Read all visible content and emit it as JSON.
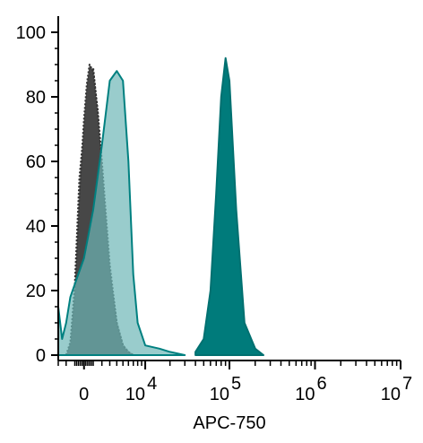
{
  "chart_data": {
    "type": "area",
    "title": "",
    "xlabel": "APC-750",
    "ylabel": "",
    "x_scale": "biexponential",
    "ylim": [
      0,
      100
    ],
    "grid": false,
    "y_ticks": [
      "0",
      "20",
      "40",
      "60",
      "80",
      "100"
    ],
    "x_ticks": [
      {
        "base": "0",
        "exp": ""
      },
      {
        "base": "10",
        "exp": "4"
      },
      {
        "base": "10",
        "exp": "5"
      },
      {
        "base": "10",
        "exp": "6"
      },
      {
        "base": "10",
        "exp": "7"
      }
    ],
    "series": [
      {
        "style": {
          "fill": "#8c8c8c",
          "opacity": 1,
          "stroke": "#333333",
          "dash": true
        },
        "x": [
          -2000,
          -1500,
          -1000,
          -500,
          0,
          300,
          600,
          1000,
          1500,
          2000,
          3000,
          4000,
          5000,
          6000,
          7000,
          8000
        ],
        "values": [
          0,
          3,
          22,
          55,
          70,
          82,
          87,
          89,
          75,
          55,
          25,
          10,
          3,
          1,
          0,
          0
        ]
      },
      {
        "style": {
          "fill": "#474747",
          "opacity": 1,
          "stroke": "#333333",
          "dash": true
        },
        "x": [
          -2000,
          -1500,
          -1000,
          -500,
          0,
          300,
          600,
          1000,
          1500,
          2000,
          3000,
          4000,
          5000,
          6000,
          7000,
          8000
        ],
        "values": [
          0,
          4,
          20,
          50,
          73,
          84,
          90,
          88,
          76,
          60,
          28,
          10,
          3,
          1,
          0,
          0
        ]
      },
      {
        "style": {
          "fill": "#6eb6b6",
          "opacity": 0.7,
          "stroke": "#008080",
          "dash": false
        },
        "x": [
          -3000,
          -2500,
          -2000,
          -1500,
          -1000,
          0,
          1000,
          2000,
          3000,
          4000,
          5000,
          6000,
          7000,
          8000,
          10000,
          15000,
          20000,
          30000
        ],
        "values": [
          15,
          5,
          10,
          18,
          22,
          30,
          45,
          65,
          85,
          88,
          85,
          60,
          25,
          10,
          3,
          2,
          1,
          0
        ]
      },
      {
        "style": {
          "fill": "#007b7b",
          "opacity": 1,
          "stroke": "#007070",
          "dash": false
        },
        "x": [
          40000,
          50000,
          60000,
          70000,
          80000,
          90000,
          100000,
          120000,
          150000,
          200000,
          250000
        ],
        "values": [
          1,
          5,
          20,
          50,
          80,
          92,
          85,
          45,
          10,
          2,
          0
        ]
      }
    ]
  }
}
